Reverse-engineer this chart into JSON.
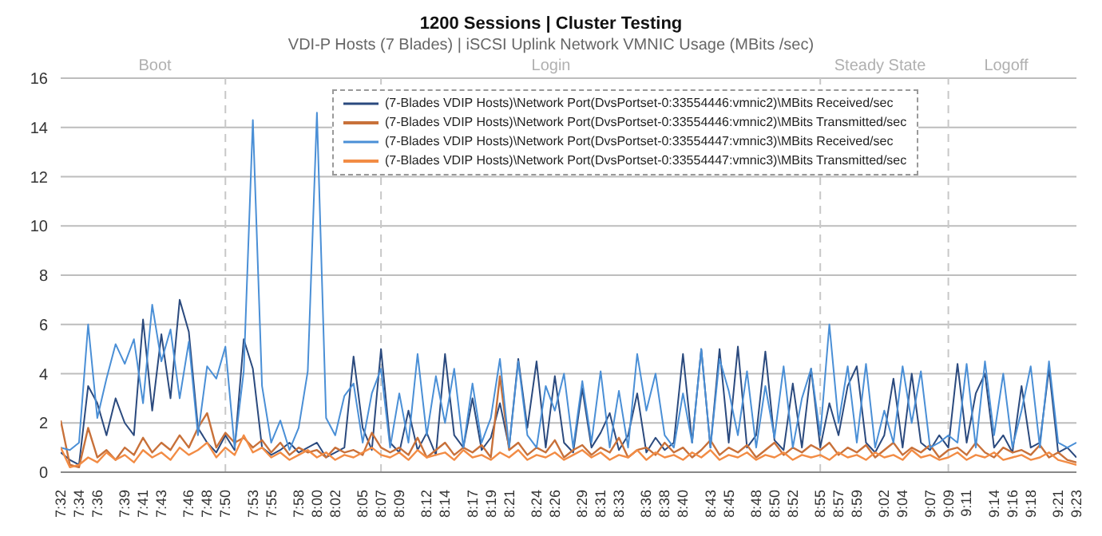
{
  "chart_data": {
    "type": "line",
    "title": "1200 Sessions | Cluster Testing",
    "subtitle": "VDI-P Hosts (7 Blades) | iSCSI Uplink Network VMNIC Usage (MBits /sec)",
    "x": [
      7.5333,
      7.55,
      7.5667,
      7.5833,
      7.6,
      7.6167,
      7.6333,
      7.65,
      7.6667,
      7.6833,
      7.7,
      7.7167,
      7.7333,
      7.75,
      7.7667,
      7.7833,
      7.8,
      7.8167,
      7.8333,
      7.85,
      7.8667,
      7.8833,
      7.9,
      7.9167,
      7.9333,
      7.95,
      7.9667,
      7.9833,
      8,
      8.0167,
      8.0333,
      8.05,
      8.0667,
      8.0833,
      8.1,
      8.1167,
      8.1333,
      8.15,
      8.1667,
      8.1833,
      8.2,
      8.2167,
      8.2333,
      8.25,
      8.2667,
      8.2833,
      8.3,
      8.3167,
      8.3333,
      8.35,
      8.3667,
      8.3833,
      8.4,
      8.4167,
      8.4333,
      8.45,
      8.4667,
      8.4833,
      8.5,
      8.5167,
      8.5333,
      8.55,
      8.5667,
      8.5833,
      8.6,
      8.6167,
      8.6333,
      8.65,
      8.6667,
      8.6833,
      8.7,
      8.7167,
      8.7333,
      8.75,
      8.7667,
      8.7833,
      8.8,
      8.8167,
      8.8333,
      8.85,
      8.8667,
      8.8833,
      8.9,
      8.9167,
      8.9333,
      8.95,
      8.9667,
      8.9833,
      9,
      9.0167,
      9.0333,
      9.05,
      9.0667,
      9.0833,
      9.1,
      9.1167,
      9.1333,
      9.15,
      9.1667,
      9.1833,
      9.2,
      9.2167,
      9.2333,
      9.25,
      9.2667,
      9.2833,
      9.3,
      9.3167,
      9.3333,
      9.35,
      9.3667,
      9.3833
    ],
    "series": [
      {
        "name": "(7-Blades VDIP Hosts)\\Network Port(DvsPortset-0:33554446:vmnic2)\\MBits Received/sec",
        "color": "#2b4a7e",
        "values": [
          0.8,
          0.5,
          0.3,
          3.5,
          2.8,
          1.5,
          3.0,
          2.0,
          1.5,
          6.2,
          2.5,
          5.6,
          3.0,
          7.0,
          5.7,
          1.8,
          1.2,
          0.8,
          1.5,
          0.9,
          5.4,
          4.2,
          1.0,
          0.7,
          0.9,
          1.2,
          0.8,
          1.0,
          1.2,
          0.6,
          0.8,
          1.0,
          4.7,
          1.8,
          0.9,
          5.0,
          1.2,
          0.8,
          2.5,
          0.9,
          1.6,
          0.7,
          4.8,
          1.5,
          1.0,
          3.0,
          0.9,
          1.4,
          2.8,
          1.0,
          4.6,
          1.8,
          4.5,
          1.0,
          3.9,
          1.2,
          0.8,
          3.4,
          1.0,
          1.6,
          2.4,
          0.9,
          1.5,
          3.2,
          0.8,
          1.4,
          0.9,
          1.2,
          4.8,
          1.2,
          5.0,
          1.0,
          5.0,
          1.2,
          5.1,
          1.0,
          1.5,
          4.9,
          1.3,
          0.9,
          3.6,
          1.0,
          4.2,
          1.0,
          2.8,
          1.5,
          3.5,
          4.3,
          1.2,
          0.8,
          1.5,
          3.8,
          1.0,
          4.0,
          1.2,
          0.9,
          1.5,
          1.0,
          4.4,
          1.2,
          3.2,
          4.0,
          1.0,
          1.5,
          0.8,
          3.5,
          1.0,
          1.2,
          4.2,
          0.8,
          1.0,
          0.6
        ]
      },
      {
        "name": "(7-Blades VDIP Hosts)\\Network Port(DvsPortset-0:33554446:vmnic2)\\MBits Transmitted/sec",
        "color": "#c8713a",
        "values": [
          2.1,
          0.3,
          0.2,
          1.8,
          0.6,
          0.9,
          0.5,
          1.0,
          0.7,
          1.4,
          0.8,
          1.2,
          0.9,
          1.5,
          1.0,
          1.8,
          2.4,
          1.0,
          1.6,
          1.2,
          1.4,
          1.0,
          1.3,
          0.8,
          1.2,
          0.7,
          1.0,
          0.8,
          0.9,
          0.6,
          1.0,
          0.8,
          0.9,
          0.7,
          1.6,
          1.0,
          0.8,
          1.0,
          0.7,
          1.4,
          0.6,
          0.9,
          1.2,
          0.7,
          1.0,
          0.8,
          1.1,
          0.6,
          3.9,
          0.9,
          1.2,
          0.7,
          1.0,
          0.8,
          1.3,
          0.6,
          0.9,
          1.1,
          0.7,
          1.0,
          0.8,
          1.4,
          0.6,
          0.9,
          1.0,
          0.7,
          1.2,
          0.8,
          1.0,
          0.6,
          0.9,
          1.3,
          0.7,
          1.0,
          0.8,
          1.1,
          0.6,
          0.9,
          1.2,
          0.7,
          1.0,
          0.8,
          1.1,
          0.9,
          1.2,
          0.7,
          1.0,
          0.8,
          1.1,
          0.6,
          0.9,
          1.2,
          0.7,
          1.0,
          0.8,
          1.1,
          0.6,
          0.9,
          1.0,
          0.7,
          1.2,
          0.8,
          0.6,
          1.0,
          0.8,
          0.9,
          0.7,
          1.1,
          0.6,
          0.8,
          0.5,
          0.4
        ]
      },
      {
        "name": "(7-Blades VDIP Hosts)\\Network Port(DvsPortset-0:33554447:vmnic3)\\MBits Received/sec",
        "color": "#4a8fd6",
        "values": [
          1.0,
          0.9,
          1.2,
          6.0,
          2.2,
          3.8,
          5.2,
          4.4,
          5.4,
          2.8,
          6.8,
          4.5,
          5.8,
          3.0,
          5.3,
          1.5,
          4.3,
          3.8,
          5.1,
          1.0,
          4.1,
          14.3,
          3.5,
          1.2,
          2.1,
          0.9,
          1.8,
          4.1,
          14.6,
          2.2,
          1.5,
          3.1,
          3.6,
          1.2,
          3.2,
          4.2,
          1.0,
          3.2,
          1.2,
          4.8,
          1.5,
          3.9,
          2.0,
          4.2,
          1.0,
          3.6,
          1.2,
          2.2,
          4.6,
          1.0,
          4.5,
          1.5,
          1.0,
          3.5,
          2.5,
          4.0,
          1.0,
          3.7,
          1.2,
          4.1,
          1.0,
          3.3,
          1.0,
          4.8,
          2.5,
          4.0,
          1.5,
          1.0,
          3.2,
          1.2,
          5.0,
          1.0,
          4.6,
          3.3,
          1.5,
          4.1,
          1.0,
          3.5,
          1.4,
          4.3,
          1.0,
          3.0,
          4.2,
          1.5,
          6.0,
          2.0,
          4.3,
          1.2,
          4.4,
          1.0,
          2.5,
          1.2,
          4.3,
          2.0,
          4.1,
          1.0,
          1.2,
          1.5,
          1.2,
          4.4,
          1.0,
          4.5,
          1.5,
          4.0,
          1.0,
          2.5,
          4.3,
          1.0,
          4.5,
          1.2,
          1.0,
          1.2
        ]
      },
      {
        "name": "(7-Blades VDIP Hosts)\\Network Port(DvsPortset-0:33554447:vmnic3)\\MBits Transmitted/sec",
        "color": "#f28c45",
        "values": [
          1.0,
          0.2,
          0.3,
          0.6,
          0.4,
          0.8,
          0.5,
          0.7,
          0.4,
          0.9,
          0.6,
          0.8,
          0.5,
          1.0,
          0.7,
          0.9,
          1.2,
          0.6,
          1.0,
          0.7,
          1.5,
          0.8,
          1.0,
          0.6,
          0.8,
          0.5,
          0.7,
          0.9,
          0.6,
          0.8,
          0.5,
          0.7,
          0.6,
          0.8,
          1.0,
          0.7,
          0.6,
          0.8,
          0.5,
          0.9,
          0.6,
          0.7,
          0.8,
          0.5,
          0.9,
          0.6,
          0.7,
          0.5,
          0.8,
          0.6,
          0.9,
          0.5,
          0.7,
          0.6,
          0.8,
          0.5,
          0.7,
          0.9,
          0.6,
          0.8,
          0.5,
          0.7,
          0.6,
          0.9,
          0.5,
          0.8,
          0.6,
          0.7,
          0.5,
          0.8,
          0.6,
          0.9,
          0.5,
          0.7,
          0.6,
          0.8,
          0.5,
          0.7,
          0.6,
          0.8,
          0.5,
          0.7,
          0.6,
          0.7,
          0.5,
          0.8,
          0.6,
          0.7,
          0.5,
          0.8,
          0.6,
          0.7,
          0.5,
          0.9,
          0.6,
          0.7,
          0.5,
          0.6,
          0.8,
          0.5,
          0.7,
          0.6,
          0.8,
          0.5,
          0.6,
          0.7,
          0.5,
          0.6,
          0.8,
          0.5,
          0.4,
          0.3
        ]
      }
    ],
    "xlim": [
      7.5333,
      9.3833
    ],
    "xticks": [
      {
        "value": 7.5333,
        "label": "7:32"
      },
      {
        "value": 7.5667,
        "label": "7:34"
      },
      {
        "value": 7.6,
        "label": "7:36"
      },
      {
        "value": 7.65,
        "label": "7:39"
      },
      {
        "value": 7.6833,
        "label": "7:41"
      },
      {
        "value": 7.7167,
        "label": "7:43"
      },
      {
        "value": 7.7667,
        "label": "7:46"
      },
      {
        "value": 7.8,
        "label": "7:48"
      },
      {
        "value": 7.8333,
        "label": "7:50"
      },
      {
        "value": 7.8833,
        "label": "7:53"
      },
      {
        "value": 7.9167,
        "label": "7:55"
      },
      {
        "value": 7.9667,
        "label": "7:58"
      },
      {
        "value": 8,
        "label": "8:00"
      },
      {
        "value": 8.0333,
        "label": "8:02"
      },
      {
        "value": 8.0833,
        "label": "8:05"
      },
      {
        "value": 8.1167,
        "label": "8:07"
      },
      {
        "value": 8.15,
        "label": "8:09"
      },
      {
        "value": 8.2,
        "label": "8:12"
      },
      {
        "value": 8.2333,
        "label": "8:14"
      },
      {
        "value": 8.2833,
        "label": "8:17"
      },
      {
        "value": 8.3167,
        "label": "8:19"
      },
      {
        "value": 8.35,
        "label": "8:21"
      },
      {
        "value": 8.4,
        "label": "8:24"
      },
      {
        "value": 8.4333,
        "label": "8:26"
      },
      {
        "value": 8.4833,
        "label": "8:29"
      },
      {
        "value": 8.5167,
        "label": "8:31"
      },
      {
        "value": 8.55,
        "label": "8:33"
      },
      {
        "value": 8.6,
        "label": "8:36"
      },
      {
        "value": 8.6333,
        "label": "8:38"
      },
      {
        "value": 8.6667,
        "label": "8:40"
      },
      {
        "value": 8.7167,
        "label": "8:43"
      },
      {
        "value": 8.75,
        "label": "8:45"
      },
      {
        "value": 8.8,
        "label": "8:48"
      },
      {
        "value": 8.8333,
        "label": "8:50"
      },
      {
        "value": 8.8667,
        "label": "8:52"
      },
      {
        "value": 8.9167,
        "label": "8:55"
      },
      {
        "value": 8.95,
        "label": "8:57"
      },
      {
        "value": 8.9833,
        "label": "8:59"
      },
      {
        "value": 9.0333,
        "label": "9:02"
      },
      {
        "value": 9.0667,
        "label": "9:04"
      },
      {
        "value": 9.1167,
        "label": "9:07"
      },
      {
        "value": 9.15,
        "label": "9:09"
      },
      {
        "value": 9.1833,
        "label": "9:11"
      },
      {
        "value": 9.2333,
        "label": "9:14"
      },
      {
        "value": 9.2667,
        "label": "9:16"
      },
      {
        "value": 9.3,
        "label": "9:18"
      },
      {
        "value": 9.35,
        "label": "9:21"
      },
      {
        "value": 9.3833,
        "label": "9:23"
      }
    ],
    "ylim": [
      0,
      16
    ],
    "yticks": [
      0,
      2,
      4,
      6,
      8,
      10,
      12,
      14,
      16
    ],
    "grid": "y",
    "legend": "top",
    "marker": "none",
    "line_style": "solid",
    "ref_lines": [
      {
        "axis": "x",
        "value": 7.8333,
        "color": "#c8c8c8",
        "line_style": "dashed"
      },
      {
        "axis": "x",
        "value": 8.1167,
        "color": "#c8c8c8",
        "line_style": "dashed"
      },
      {
        "axis": "x",
        "value": 8.9167,
        "color": "#c8c8c8",
        "line_style": "dashed"
      },
      {
        "axis": "x",
        "value": 9.15,
        "color": "#c8c8c8",
        "line_style": "dashed"
      }
    ],
    "annotations": [
      "Boot",
      "Login",
      "Steady State",
      "Logoff"
    ]
  }
}
